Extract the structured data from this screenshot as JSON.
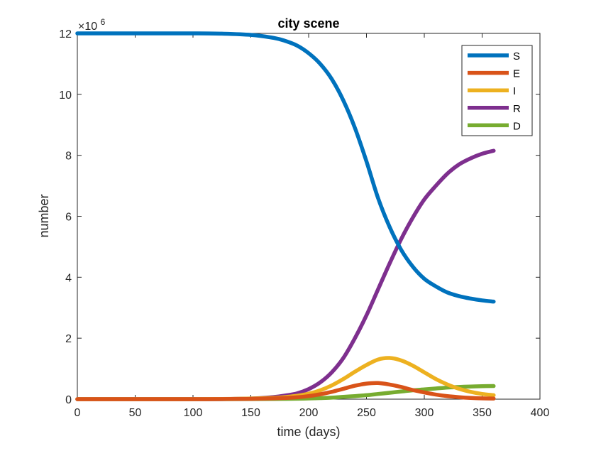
{
  "chart_data": {
    "type": "line",
    "title": "city scene",
    "xlabel": "time (days)",
    "ylabel": "number",
    "y_multiplier_base": "×10",
    "y_multiplier_exp": "6",
    "xlim": [
      0,
      400
    ],
    "ylim": [
      0,
      12
    ],
    "xticks": [
      0,
      50,
      100,
      150,
      200,
      250,
      300,
      350,
      400
    ],
    "yticks": [
      0,
      2,
      4,
      6,
      8,
      10,
      12
    ],
    "grid": false,
    "legend_position": "top-right",
    "x": [
      0,
      25,
      50,
      75,
      100,
      125,
      150,
      170,
      180,
      190,
      200,
      210,
      220,
      230,
      240,
      250,
      260,
      270,
      280,
      290,
      300,
      310,
      320,
      330,
      340,
      350,
      360
    ],
    "series": [
      {
        "name": "S",
        "color": "#0072BD",
        "values": [
          12.0,
          12.0,
          12.0,
          12.0,
          12.0,
          11.99,
          11.95,
          11.85,
          11.75,
          11.6,
          11.35,
          11.0,
          10.5,
          9.8,
          8.9,
          7.8,
          6.6,
          5.65,
          4.9,
          4.35,
          3.95,
          3.7,
          3.5,
          3.38,
          3.3,
          3.24,
          3.2
        ]
      },
      {
        "name": "E",
        "color": "#D95319",
        "values": [
          0,
          0,
          0,
          0,
          0,
          0.003,
          0.01,
          0.025,
          0.04,
          0.06,
          0.1,
          0.16,
          0.24,
          0.34,
          0.44,
          0.51,
          0.53,
          0.48,
          0.4,
          0.3,
          0.22,
          0.15,
          0.1,
          0.065,
          0.04,
          0.025,
          0.02
        ]
      },
      {
        "name": "I",
        "color": "#EDB120",
        "values": [
          0,
          0,
          0,
          0,
          0,
          0.005,
          0.02,
          0.045,
          0.07,
          0.11,
          0.18,
          0.29,
          0.45,
          0.66,
          0.9,
          1.12,
          1.3,
          1.35,
          1.27,
          1.1,
          0.88,
          0.66,
          0.48,
          0.34,
          0.24,
          0.17,
          0.13
        ]
      },
      {
        "name": "R",
        "color": "#7E2F8E",
        "values": [
          0,
          0,
          0,
          0,
          0,
          0.004,
          0.02,
          0.07,
          0.12,
          0.19,
          0.33,
          0.55,
          0.88,
          1.35,
          2.0,
          2.75,
          3.6,
          4.45,
          5.25,
          5.95,
          6.55,
          7.0,
          7.4,
          7.7,
          7.9,
          8.05,
          8.15
        ]
      },
      {
        "name": "D",
        "color": "#77AC30",
        "values": [
          0,
          0,
          0,
          0,
          0,
          0,
          0.002,
          0.005,
          0.009,
          0.014,
          0.022,
          0.035,
          0.05,
          0.075,
          0.1,
          0.13,
          0.17,
          0.21,
          0.25,
          0.29,
          0.32,
          0.35,
          0.38,
          0.4,
          0.415,
          0.425,
          0.43
        ]
      }
    ]
  }
}
